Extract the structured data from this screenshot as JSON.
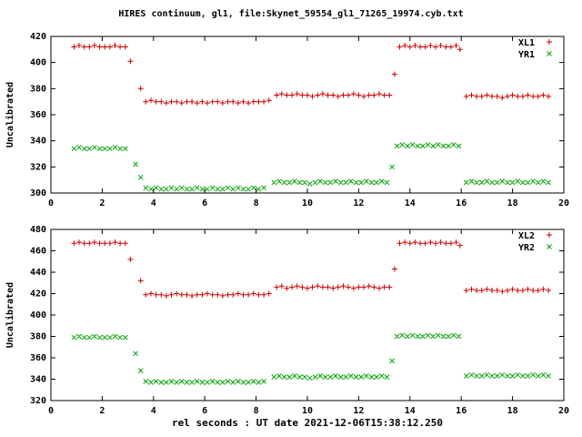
{
  "title": "HIRES continuum, gl1, file:Skynet_59554_gl1_71265_19974.cyb.txt",
  "xlabel": "rel seconds : UT date 2021-12-06T15:38:12.250",
  "colors": {
    "red": "#cc0000",
    "green": "#00a000",
    "axis": "#000000"
  },
  "chart_data": [
    {
      "type": "scatter",
      "ylabel": "Uncalibrated",
      "xlim": [
        0,
        20
      ],
      "ylim": [
        300,
        420
      ],
      "xticks": [
        0,
        2,
        4,
        6,
        8,
        10,
        12,
        14,
        16,
        18,
        20
      ],
      "yticks": [
        300,
        320,
        340,
        360,
        380,
        400,
        420
      ],
      "grid": false,
      "legend_position": "top-right",
      "series": [
        {
          "name": "XL1",
          "marker": "plus",
          "color": "red",
          "x": [
            0.9,
            1.1,
            1.3,
            1.5,
            1.7,
            1.9,
            2.1,
            2.3,
            2.5,
            2.7,
            2.9,
            3.1,
            3.5,
            3.7,
            3.9,
            4.1,
            4.3,
            4.5,
            4.7,
            4.9,
            5.1,
            5.3,
            5.5,
            5.7,
            5.9,
            6.1,
            6.3,
            6.5,
            6.7,
            6.9,
            7.1,
            7.3,
            7.5,
            7.7,
            7.9,
            8.1,
            8.3,
            8.5,
            8.8,
            9.0,
            9.2,
            9.4,
            9.6,
            9.8,
            10.0,
            10.2,
            10.4,
            10.6,
            10.8,
            11.0,
            11.2,
            11.4,
            11.6,
            11.8,
            12.0,
            12.2,
            12.4,
            12.6,
            12.8,
            13.0,
            13.2,
            13.4,
            13.6,
            13.8,
            14.0,
            14.2,
            14.4,
            14.6,
            14.8,
            15.0,
            15.2,
            15.4,
            15.6,
            15.8,
            15.95,
            16.2,
            16.4,
            16.6,
            16.8,
            17.0,
            17.2,
            17.4,
            17.6,
            17.8,
            18.0,
            18.2,
            18.4,
            18.6,
            18.8,
            19.0,
            19.2,
            19.4
          ],
          "y": [
            412,
            413,
            412,
            412,
            413,
            412,
            412,
            412,
            413,
            412,
            412,
            401,
            380,
            370,
            371,
            370,
            370,
            369,
            370,
            370,
            369,
            370,
            370,
            369,
            370,
            369,
            370,
            370,
            369,
            370,
            370,
            369,
            370,
            369,
            370,
            370,
            370,
            371,
            375,
            376,
            375,
            375,
            376,
            375,
            375,
            374,
            375,
            376,
            375,
            375,
            374,
            375,
            375,
            376,
            375,
            374,
            375,
            375,
            376,
            375,
            375,
            391,
            412,
            413,
            412,
            413,
            412,
            412,
            413,
            412,
            413,
            412,
            412,
            413,
            410,
            374,
            375,
            374,
            374,
            375,
            374,
            374,
            373,
            374,
            375,
            374,
            374,
            375,
            374,
            374,
            375,
            374
          ]
        },
        {
          "name": "YR1",
          "marker": "cross",
          "color": "green",
          "x": [
            0.9,
            1.1,
            1.3,
            1.5,
            1.7,
            1.9,
            2.1,
            2.3,
            2.5,
            2.7,
            2.9,
            3.3,
            3.5,
            3.7,
            3.9,
            4.1,
            4.3,
            4.5,
            4.7,
            4.9,
            5.1,
            5.3,
            5.5,
            5.7,
            5.9,
            6.1,
            6.3,
            6.5,
            6.7,
            6.9,
            7.1,
            7.3,
            7.5,
            7.7,
            7.9,
            8.1,
            8.3,
            8.7,
            8.9,
            9.1,
            9.3,
            9.5,
            9.7,
            9.9,
            10.1,
            10.3,
            10.5,
            10.7,
            10.9,
            11.1,
            11.3,
            11.5,
            11.7,
            11.9,
            12.1,
            12.3,
            12.5,
            12.7,
            12.9,
            13.1,
            13.3,
            13.5,
            13.7,
            13.9,
            14.1,
            14.3,
            14.5,
            14.7,
            14.9,
            15.1,
            15.3,
            15.5,
            15.7,
            15.9,
            16.2,
            16.4,
            16.6,
            16.8,
            17.0,
            17.2,
            17.4,
            17.6,
            17.8,
            18.0,
            18.2,
            18.4,
            18.6,
            18.8,
            19.0,
            19.2,
            19.4
          ],
          "y": [
            334,
            335,
            334,
            334,
            335,
            334,
            334,
            334,
            335,
            334,
            334,
            322,
            312,
            304,
            303,
            304,
            303,
            303,
            304,
            303,
            304,
            303,
            303,
            304,
            303,
            303,
            304,
            303,
            303,
            304,
            303,
            304,
            303,
            303,
            304,
            303,
            304,
            308,
            309,
            308,
            308,
            309,
            308,
            308,
            307,
            308,
            309,
            308,
            308,
            309,
            308,
            308,
            309,
            308,
            308,
            309,
            308,
            308,
            309,
            308,
            320,
            336,
            337,
            336,
            337,
            336,
            336,
            337,
            336,
            337,
            336,
            336,
            337,
            336,
            308,
            309,
            308,
            308,
            309,
            308,
            308,
            309,
            308,
            308,
            309,
            308,
            308,
            309,
            308,
            309,
            308
          ]
        }
      ]
    },
    {
      "type": "scatter",
      "ylabel": "Uncalibrated",
      "xlim": [
        0,
        20
      ],
      "ylim": [
        320,
        480
      ],
      "xticks": [
        0,
        2,
        4,
        6,
        8,
        10,
        12,
        14,
        16,
        18,
        20
      ],
      "yticks": [
        320,
        340,
        360,
        380,
        400,
        420,
        440,
        460,
        480
      ],
      "grid": false,
      "legend_position": "top-right",
      "series": [
        {
          "name": "XL2",
          "marker": "plus",
          "color": "red",
          "x": [
            0.9,
            1.1,
            1.3,
            1.5,
            1.7,
            1.9,
            2.1,
            2.3,
            2.5,
            2.7,
            2.9,
            3.1,
            3.5,
            3.7,
            3.9,
            4.1,
            4.3,
            4.5,
            4.7,
            4.9,
            5.1,
            5.3,
            5.5,
            5.7,
            5.9,
            6.1,
            6.3,
            6.5,
            6.7,
            6.9,
            7.1,
            7.3,
            7.5,
            7.7,
            7.9,
            8.1,
            8.3,
            8.5,
            8.8,
            9.0,
            9.2,
            9.4,
            9.6,
            9.8,
            10.0,
            10.2,
            10.4,
            10.6,
            10.8,
            11.0,
            11.2,
            11.4,
            11.6,
            11.8,
            12.0,
            12.2,
            12.4,
            12.6,
            12.8,
            13.0,
            13.2,
            13.4,
            13.6,
            13.8,
            14.0,
            14.2,
            14.4,
            14.6,
            14.8,
            15.0,
            15.2,
            15.4,
            15.6,
            15.8,
            15.95,
            16.2,
            16.4,
            16.6,
            16.8,
            17.0,
            17.2,
            17.4,
            17.6,
            17.8,
            18.0,
            18.2,
            18.4,
            18.6,
            18.8,
            19.0,
            19.2,
            19.4
          ],
          "y": [
            467,
            468,
            467,
            467,
            468,
            467,
            467,
            467,
            468,
            467,
            467,
            452,
            432,
            419,
            420,
            419,
            419,
            418,
            419,
            420,
            419,
            419,
            418,
            419,
            419,
            420,
            419,
            419,
            418,
            419,
            419,
            420,
            419,
            419,
            420,
            419,
            419,
            420,
            426,
            427,
            425,
            426,
            427,
            426,
            425,
            426,
            427,
            426,
            426,
            425,
            426,
            427,
            426,
            425,
            426,
            426,
            427,
            426,
            425,
            426,
            426,
            443,
            467,
            468,
            467,
            468,
            467,
            467,
            468,
            467,
            468,
            467,
            467,
            468,
            465,
            423,
            424,
            423,
            423,
            424,
            423,
            423,
            422,
            423,
            424,
            423,
            423,
            424,
            423,
            423,
            424,
            423
          ]
        },
        {
          "name": "YR2",
          "marker": "cross",
          "color": "green",
          "x": [
            0.9,
            1.1,
            1.3,
            1.5,
            1.7,
            1.9,
            2.1,
            2.3,
            2.5,
            2.7,
            2.9,
            3.3,
            3.5,
            3.7,
            3.9,
            4.1,
            4.3,
            4.5,
            4.7,
            4.9,
            5.1,
            5.3,
            5.5,
            5.7,
            5.9,
            6.1,
            6.3,
            6.5,
            6.7,
            6.9,
            7.1,
            7.3,
            7.5,
            7.7,
            7.9,
            8.1,
            8.3,
            8.7,
            8.9,
            9.1,
            9.3,
            9.5,
            9.7,
            9.9,
            10.1,
            10.3,
            10.5,
            10.7,
            10.9,
            11.1,
            11.3,
            11.5,
            11.7,
            11.9,
            12.1,
            12.3,
            12.5,
            12.7,
            12.9,
            13.1,
            13.3,
            13.5,
            13.7,
            13.9,
            14.1,
            14.3,
            14.5,
            14.7,
            14.9,
            15.1,
            15.3,
            15.5,
            15.7,
            15.9,
            16.2,
            16.4,
            16.6,
            16.8,
            17.0,
            17.2,
            17.4,
            17.6,
            17.8,
            18.0,
            18.2,
            18.4,
            18.6,
            18.8,
            19.0,
            19.2,
            19.4
          ],
          "y": [
            379,
            380,
            379,
            379,
            380,
            379,
            379,
            379,
            380,
            379,
            379,
            364,
            348,
            338,
            337,
            338,
            337,
            337,
            338,
            337,
            338,
            337,
            337,
            338,
            337,
            337,
            338,
            337,
            337,
            338,
            337,
            338,
            337,
            337,
            338,
            337,
            338,
            342,
            343,
            342,
            342,
            343,
            342,
            342,
            341,
            342,
            343,
            342,
            342,
            343,
            342,
            342,
            343,
            342,
            342,
            343,
            342,
            342,
            343,
            342,
            357,
            380,
            381,
            380,
            381,
            380,
            380,
            381,
            380,
            381,
            380,
            380,
            381,
            380,
            343,
            344,
            343,
            343,
            344,
            343,
            343,
            344,
            343,
            343,
            344,
            343,
            343,
            344,
            343,
            344,
            343
          ]
        }
      ]
    }
  ]
}
